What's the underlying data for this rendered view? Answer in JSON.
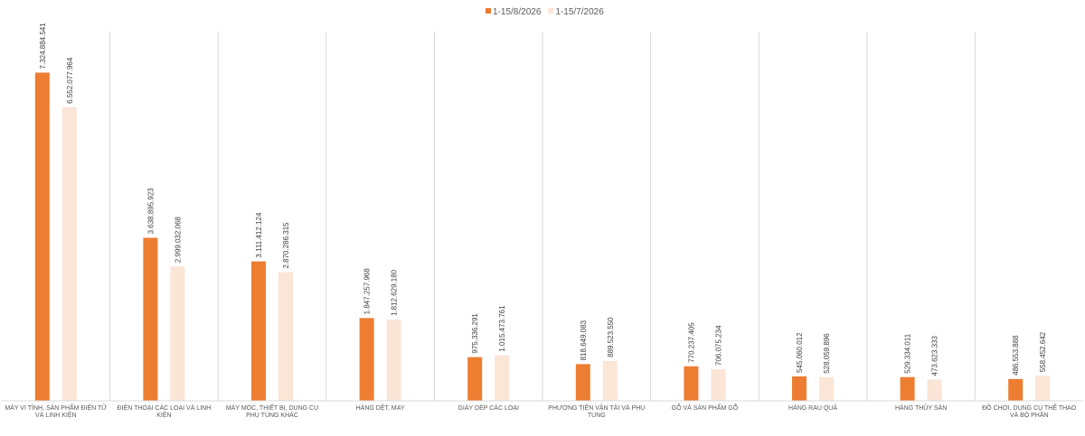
{
  "chart_data": {
    "type": "bar",
    "title": "",
    "xlabel": "",
    "ylabel": "",
    "ylim": [
      0,
      8100000
    ],
    "grid": false,
    "legend_position": "top-center",
    "categories": [
      "MÁY VI TÍNH, SẢN PHẨM ĐIỆN TỬ VÀ LINH KIỆN",
      "ĐIỆN THOẠI CÁC LOẠI VÀ LINH KIỆN",
      "MÁY MÓC, THIẾT BỊ, DỤNG CỤ PHỤ TÙNG KHÁC",
      "HÀNG DỆT, MAY",
      "GIÀY DÉP CÁC LOẠI",
      "PHƯƠNG TIỆN VẬN TẢI VÀ PHỤ TÙNG",
      "GỖ VÀ SẢN PHẨM GỖ",
      "HÀNG RAU QUẢ",
      "HÀNG THỦY SẢN",
      "ĐỒ CHƠI, DỤNG CỤ THỂ THAO VÀ BỘ PHẬN"
    ],
    "series": [
      {
        "name": "1-15/8/2026",
        "color": "#ED7D31",
        "values": [
          7324884541,
          3638895923,
          3111412124,
          1847257968,
          975336291,
          818649083,
          770237405,
          545060012,
          529334011,
          486553888
        ],
        "labels": [
          "7.324.884.541",
          "3.638.895.923",
          "3.111.412.124",
          "1.847.257.968",
          "975.336.291",
          "818.649.083",
          "770.237.405",
          "545.060.012",
          "529.334.011",
          "486.553.888"
        ]
      },
      {
        "name": "1-15/7/2026",
        "color": "#FBE5D6",
        "values": [
          6552077964,
          2999032068,
          2870286315,
          1812629180,
          1015473761,
          889523550,
          706075234,
          528059896,
          473623333,
          558452642
        ],
        "labels": [
          "6.552.077.964",
          "2.999.032.068",
          "2.870.286.315",
          "1.812.629.180",
          "1.015.473.761",
          "889.523.550",
          "706.075.234",
          "528.059.896",
          "473.623.333",
          "558.452.642"
        ]
      }
    ]
  }
}
